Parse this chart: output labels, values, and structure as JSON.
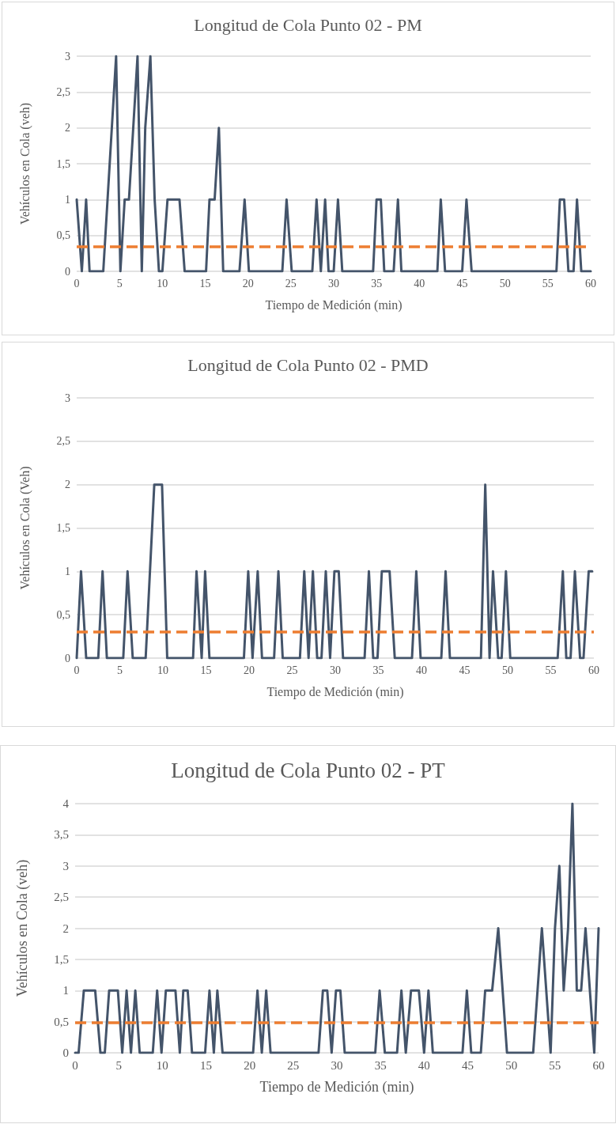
{
  "chart_data": [
    {
      "type": "line",
      "title": "Longitud de Cola Punto 02 - PM",
      "xlabel": "Tiempo de Medición (min)",
      "ylabel": "Vehículos en Cola (veh)",
      "xlim": [
        0,
        60
      ],
      "xticks": [
        0,
        5,
        10,
        15,
        20,
        25,
        30,
        35,
        40,
        45,
        50,
        55,
        60
      ],
      "ylim": [
        0,
        3
      ],
      "yticks": [
        0,
        {
          "value": 0.5,
          "label": "0,5"
        },
        1,
        {
          "value": 1.5,
          "label": "1,5"
        },
        2,
        {
          "value": 2.5,
          "label": "2,5"
        },
        3
      ],
      "grid": "y",
      "marker": "none",
      "line_style": "solid",
      "series": [
        {
          "color": "#44546a",
          "x": [
            0,
            0.6,
            1.1,
            1.5,
            3.1,
            4.6,
            5.1,
            5.6,
            6.1,
            7.1,
            7.6,
            8.0,
            8.6,
            9.1,
            9.6,
            10.0,
            10.6,
            12.0,
            12.6,
            15.1,
            15.5,
            16.1,
            16.6,
            17.1,
            19.0,
            19.6,
            20.1,
            24.0,
            24.5,
            25.1,
            27.5,
            28.0,
            28.5,
            29.0,
            29.4,
            30.0,
            30.5,
            31.0,
            34.6,
            35.0,
            35.5,
            35.9,
            37.0,
            37.5,
            37.9,
            42.1,
            42.5,
            43.0,
            45.0,
            45.5,
            46.1,
            56.0,
            56.4,
            56.9,
            57.4,
            58.0,
            58.4,
            58.9,
            60
          ],
          "values": [
            1,
            0,
            1,
            0,
            0,
            3,
            0,
            1,
            1,
            3,
            0,
            2,
            3,
            1,
            0,
            0,
            1,
            1,
            0,
            0,
            1,
            1,
            2,
            0,
            0,
            1,
            0,
            0,
            1,
            0,
            0,
            1,
            0,
            1,
            0,
            0,
            1,
            0,
            0,
            1,
            1,
            0,
            0,
            1,
            0,
            0,
            1,
            0,
            0,
            1,
            0,
            0,
            1,
            1,
            0,
            0,
            1,
            0,
            0
          ]
        }
      ],
      "ref_lines": [
        {
          "axis": "y",
          "value": 0.35,
          "color": "#ed7d31",
          "line_style": "dashed"
        }
      ]
    },
    {
      "type": "line",
      "title": "Longitud de Cola Punto 02 - PMD",
      "xlabel": "Tiempo de Medición (min)",
      "ylabel": "Vehículos en Cola (Veh)",
      "xlim": [
        0,
        60
      ],
      "xticks": [
        0,
        5,
        10,
        15,
        20,
        25,
        30,
        35,
        40,
        45,
        50,
        55,
        60
      ],
      "ylim": [
        0,
        3
      ],
      "yticks": [
        0,
        {
          "value": 0.5,
          "label": "0,5"
        },
        1,
        {
          "value": 1.5,
          "label": "1,5"
        },
        2,
        {
          "value": 2.5,
          "label": "2,5"
        },
        3
      ],
      "grid": "y",
      "marker": "none",
      "line_style": "solid",
      "series": [
        {
          "color": "#44546a",
          "x": [
            0,
            0.5,
            1.1,
            2.5,
            3.0,
            3.5,
            5.4,
            5.9,
            6.5,
            8.0,
            9.0,
            9.9,
            10.5,
            13.5,
            13.9,
            14.5,
            14.9,
            15.4,
            19.4,
            19.9,
            20.4,
            21.0,
            21.5,
            22.9,
            23.4,
            23.9,
            25.9,
            26.4,
            26.9,
            27.4,
            27.9,
            28.4,
            28.9,
            29.4,
            29.9,
            30.4,
            30.9,
            33.4,
            33.9,
            34.4,
            34.9,
            35.4,
            36.3,
            36.9,
            38.9,
            39.4,
            39.9,
            42.3,
            42.8,
            43.3,
            46.9,
            47.4,
            47.9,
            48.3,
            48.9,
            49.3,
            49.8,
            50.3,
            55.8,
            56.4,
            56.8,
            57.3,
            57.8,
            58.4,
            58.8,
            59.4,
            59.8
          ],
          "values": [
            0,
            1,
            0,
            0,
            1,
            0,
            0,
            1,
            0,
            0,
            2,
            2,
            0,
            0,
            1,
            0,
            1,
            0,
            0,
            1,
            0,
            1,
            0,
            0,
            1,
            0,
            0,
            1,
            0,
            1,
            0,
            0,
            1,
            0,
            1,
            1,
            0,
            0,
            1,
            0,
            0,
            1,
            1,
            0,
            0,
            1,
            0,
            0,
            1,
            0,
            0,
            2,
            0,
            1,
            0,
            0,
            1,
            0,
            0,
            1,
            0,
            0,
            1,
            0,
            0,
            1,
            1
          ]
        }
      ],
      "ref_lines": [
        {
          "axis": "y",
          "value": 0.3,
          "color": "#ed7d31",
          "line_style": "dashed"
        }
      ]
    },
    {
      "type": "line",
      "title": "Longitud de Cola Punto 02 - PT",
      "xlabel": "Tiempo de Medición (min)",
      "ylabel": "Vehículos en Cola (veh)",
      "xlim": [
        0,
        60
      ],
      "xticks": [
        0,
        5,
        10,
        15,
        20,
        25,
        30,
        35,
        40,
        45,
        50,
        55,
        60
      ],
      "ylim": [
        0,
        4
      ],
      "yticks": [
        0,
        {
          "value": 0.5,
          "label": "0,5"
        },
        1,
        {
          "value": 1.5,
          "label": "1,5"
        },
        2,
        {
          "value": 2.5,
          "label": "2,5"
        },
        3,
        {
          "value": 3.5,
          "label": "3,5"
        },
        4
      ],
      "grid": "y",
      "marker": "none",
      "line_style": "solid",
      "series": [
        {
          "color": "#44546a",
          "x": [
            0,
            0.4,
            1.0,
            2.3,
            2.9,
            3.4,
            3.9,
            4.9,
            5.4,
            5.9,
            6.4,
            6.9,
            7.4,
            8.9,
            9.4,
            9.9,
            10.4,
            11.5,
            12.0,
            12.4,
            12.9,
            13.4,
            14.9,
            15.4,
            15.9,
            16.3,
            16.9,
            20.4,
            20.9,
            21.4,
            21.9,
            22.4,
            27.9,
            28.4,
            28.9,
            29.4,
            29.9,
            30.4,
            30.9,
            34.4,
            34.9,
            35.5,
            36.9,
            37.4,
            37.9,
            38.5,
            39.4,
            40.0,
            40.5,
            41.0,
            44.4,
            44.9,
            45.4,
            46.5,
            47.0,
            47.8,
            48.5,
            49.5,
            52.5,
            53.5,
            54.5,
            55.0,
            55.5,
            56.0,
            56.5,
            57.0,
            57.5,
            58.0,
            58.5,
            59.5,
            60.0
          ],
          "values": [
            0,
            0,
            1,
            1,
            0,
            0,
            1,
            1,
            0,
            1,
            0,
            1,
            0,
            0,
            1,
            0,
            1,
            1,
            0,
            1,
            1,
            0,
            0,
            1,
            0,
            1,
            0,
            0,
            1,
            0,
            1,
            0,
            0,
            1,
            1,
            0,
            1,
            1,
            0,
            0,
            1,
            0,
            0,
            1,
            0,
            1,
            1,
            0,
            1,
            0,
            0,
            1,
            0,
            0,
            1,
            1,
            2,
            0,
            0,
            2,
            0,
            2,
            3,
            1,
            2,
            4,
            1,
            1,
            2,
            0,
            2
          ]
        }
      ],
      "ref_lines": [
        {
          "axis": "y",
          "value": 0.48,
          "color": "#ed7d31",
          "line_style": "dashed"
        }
      ]
    }
  ]
}
